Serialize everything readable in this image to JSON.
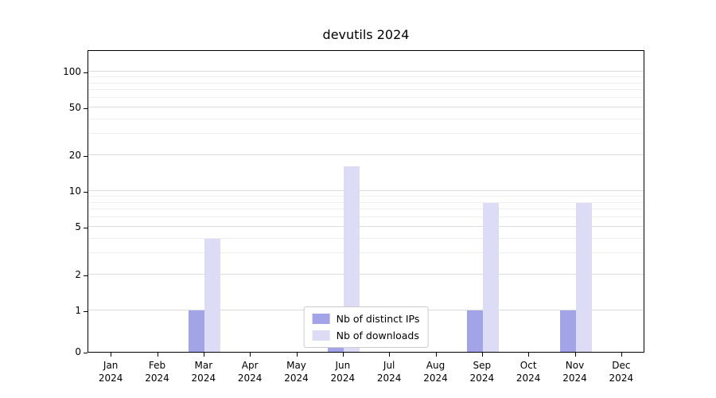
{
  "chart_data": {
    "type": "bar",
    "title": "devutils 2024",
    "categories": [
      "Jan 2024",
      "Feb 2024",
      "Mar 2024",
      "Apr 2024",
      "May 2024",
      "Jun 2024",
      "Jul 2024",
      "Aug 2024",
      "Sep 2024",
      "Oct 2024",
      "Nov 2024",
      "Dec 2024"
    ],
    "series": [
      {
        "name": "Nb of distinct IPs",
        "color": "#a3a3e8",
        "values": [
          0,
          0,
          1,
          0,
          0,
          1,
          0,
          0,
          1,
          0,
          1,
          0
        ]
      },
      {
        "name": "Nb of downloads",
        "color": "#dcdcf7",
        "values": [
          0,
          0,
          4,
          0,
          0,
          16,
          0,
          0,
          8,
          0,
          8,
          0
        ]
      }
    ],
    "y_ticks": [
      0,
      1,
      2,
      5,
      10,
      20,
      50,
      100
    ],
    "y_minor_ticks": [
      3,
      4,
      6,
      7,
      8,
      9,
      30,
      40,
      60,
      70,
      80,
      90
    ],
    "y_scale": "symlog",
    "ylim": [
      0,
      110
    ],
    "grid": "horizontal",
    "legend_position": "lower center",
    "xlabel": "",
    "ylabel": ""
  }
}
